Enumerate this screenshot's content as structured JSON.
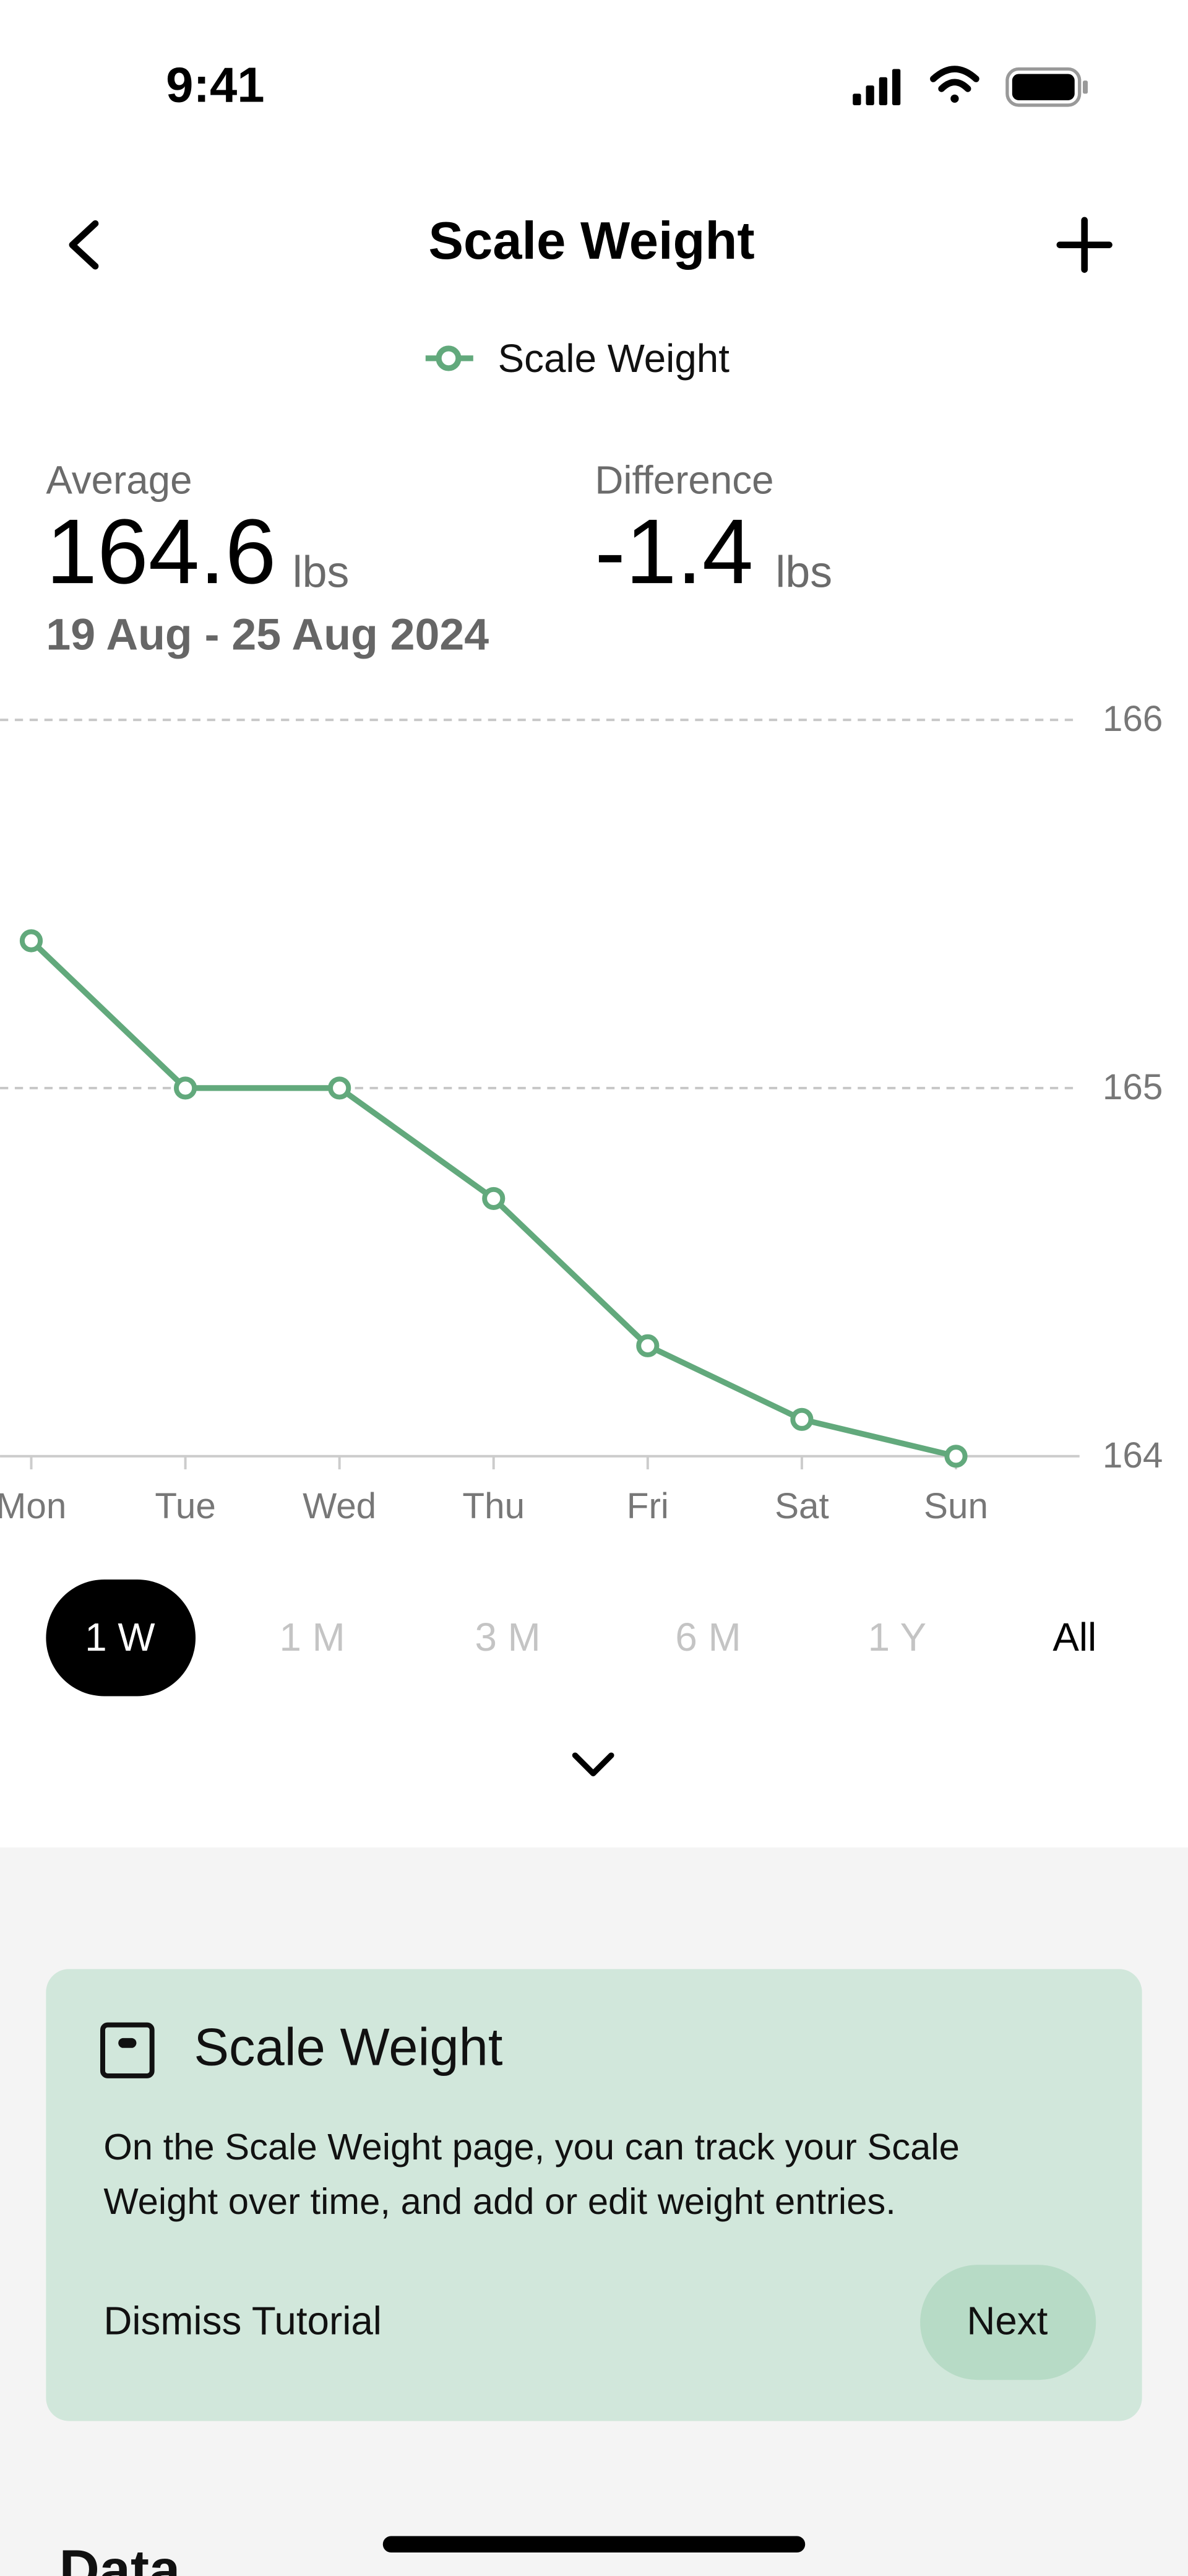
{
  "status_bar": {
    "time": "9:41"
  },
  "header": {
    "title": "Scale Weight"
  },
  "summary": {
    "average_label": "Average",
    "average": 164.6,
    "average_unit": "lbs",
    "difference_label": "Difference",
    "difference": -1.4,
    "difference_unit": "lbs",
    "date_range": "19 Aug - 25 Aug 2024"
  },
  "chart_data": {
    "type": "line",
    "categories": [
      "Mon",
      "Tue",
      "Wed",
      "Thu",
      "Fri",
      "Sat",
      "Sun"
    ],
    "series": [
      {
        "name": "Scale Weight",
        "color": "#62a97c",
        "values": [
          165.4,
          165.0,
          165.0,
          164.7,
          164.3,
          164.1,
          164.0
        ]
      }
    ],
    "ylim": [
      164,
      166
    ],
    "yticks": [
      164,
      165,
      166
    ],
    "grid": true
  },
  "range_tabs": [
    "1 W",
    "1 M",
    "3 M",
    "6 M",
    "1 Y",
    "All"
  ],
  "tutorial": {
    "title": "Scale Weight",
    "body": [
      "On the Scale Weight page, you can track your Scale",
      "Weight over time, and add or edit weight entries."
    ],
    "dismiss": "Dismiss Tutorial",
    "next": "Next"
  },
  "section": {
    "title": "Data"
  }
}
